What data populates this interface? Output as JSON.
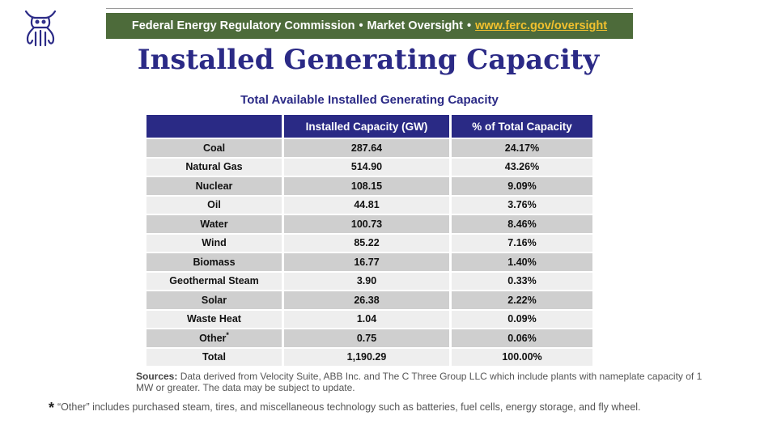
{
  "header": {
    "org_text": "Federal Energy Regulatory Commission",
    "separator": "•",
    "section_text": "Market Oversight",
    "link_text": "www.ferc.gov/oversight"
  },
  "colors": {
    "banner_bg": "#4d6b3a",
    "link": "#f2c12e",
    "title": "#2b2a86",
    "table_header": "#2a2a85",
    "row_shade": "#cfcfcf",
    "row_plain": "#eeeeee"
  },
  "page": {
    "title": "Installed Generating Capacity",
    "logo_icon": "bull-logo-icon"
  },
  "table": {
    "caption": "Total Available Installed Generating Capacity",
    "columns": [
      "",
      "Installed Capacity (GW)",
      "% of Total Capacity"
    ],
    "rows": [
      {
        "source": "Coal",
        "capacity": "287.64",
        "percent": "24.17%"
      },
      {
        "source": "Natural Gas",
        "capacity": "514.90",
        "percent": "43.26%"
      },
      {
        "source": "Nuclear",
        "capacity": "108.15",
        "percent": "9.09%"
      },
      {
        "source": "Oil",
        "capacity": "44.81",
        "percent": "3.76%"
      },
      {
        "source": "Water",
        "capacity": "100.73",
        "percent": "8.46%"
      },
      {
        "source": "Wind",
        "capacity": "85.22",
        "percent": "7.16%"
      },
      {
        "source": "Biomass",
        "capacity": "16.77",
        "percent": "1.40%"
      },
      {
        "source": "Geothermal Steam",
        "capacity": "3.90",
        "percent": "0.33%"
      },
      {
        "source": "Solar",
        "capacity": "26.38",
        "percent": "2.22%"
      },
      {
        "source": "Waste Heat",
        "capacity": "1.04",
        "percent": "0.09%"
      },
      {
        "source": "Other",
        "capacity": "0.75",
        "percent": "0.06%"
      }
    ],
    "other_marker": "*",
    "total": {
      "source": "Total",
      "capacity": "1,190.29",
      "percent": "100.00%"
    }
  },
  "notes": {
    "sources_label": "Sources:",
    "sources_text": "Data derived from Velocity Suite, ABB Inc. and The C Three Group LLC which include plants with nameplate capacity of 1 MW or greater.  The data may be subject to update.",
    "footnote_marker": "*",
    "footnote_text": "“Other” includes purchased steam, tires, and miscellaneous technology such as batteries, fuel cells, energy storage, and fly wheel."
  }
}
